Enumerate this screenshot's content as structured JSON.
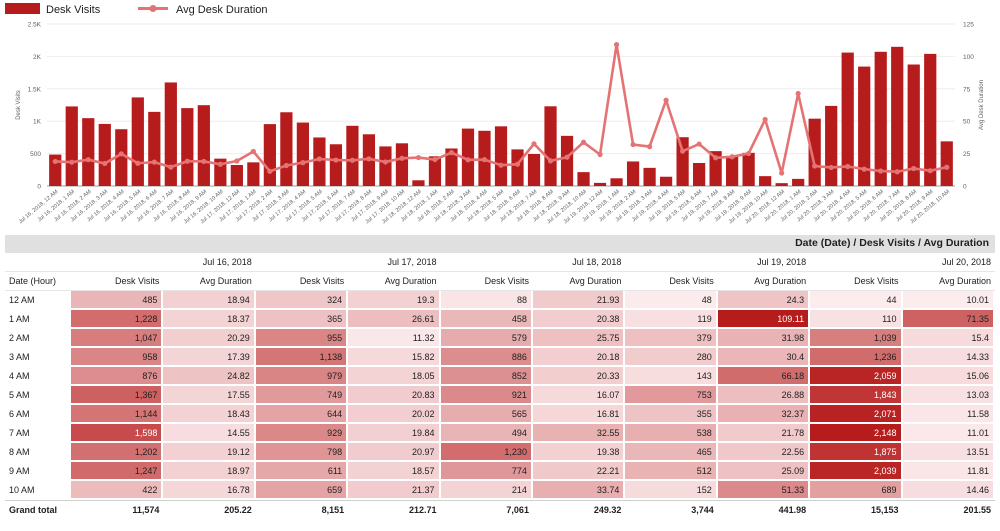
{
  "chart_data": {
    "type": "bar+line",
    "legend": {
      "position": "top-left",
      "bar_label": "Desk Visits",
      "line_label": "Avg Desk Duration"
    },
    "ylabel_left": "Desk Visits",
    "ylabel_right": "Avg Desk Duration",
    "ylim_left": [
      0,
      2500
    ],
    "ylim_right": [
      0,
      125
    ],
    "yticks_left": [
      "0",
      "500",
      "1K",
      "1.5K",
      "2K",
      "2.5K"
    ],
    "yticks_right": [
      "0",
      "25",
      "50",
      "75",
      "100",
      "125"
    ],
    "bar_color": "#b71c1c",
    "line_color": "#e57373",
    "categories": [
      "Jul 16, 2018, 12 AM",
      "Jul 16, 2018, 1 AM",
      "Jul 16, 2018, 2 AM",
      "Jul 16, 2018, 3 AM",
      "Jul 16, 2018, 4 AM",
      "Jul 16, 2018, 5 AM",
      "Jul 16, 2018, 6 AM",
      "Jul 16, 2018, 7 AM",
      "Jul 16, 2018, 8 AM",
      "Jul 16, 2018, 9 AM",
      "Jul 16, 2018, 10 AM",
      "Jul 17, 2018, 12 AM",
      "Jul 17, 2018, 1 AM",
      "Jul 17, 2018, 2 AM",
      "Jul 17, 2018, 3 AM",
      "Jul 17, 2018, 4 AM",
      "Jul 17, 2018, 5 AM",
      "Jul 17, 2018, 6 AM",
      "Jul 17, 2018, 7 AM",
      "Jul 17, 2018, 8 AM",
      "Jul 17, 2018, 9 AM",
      "Jul 17, 2018, 10 AM",
      "Jul 18, 2018, 12 AM",
      "Jul 18, 2018, 1 AM",
      "Jul 18, 2018, 2 AM",
      "Jul 18, 2018, 3 AM",
      "Jul 18, 2018, 4 AM",
      "Jul 18, 2018, 5 AM",
      "Jul 18, 2018, 6 AM",
      "Jul 18, 2018, 7 AM",
      "Jul 18, 2018, 8 AM",
      "Jul 18, 2018, 9 AM",
      "Jul 18, 2018, 10 AM",
      "Jul 19, 2018, 12 AM",
      "Jul 19, 2018, 1 AM",
      "Jul 19, 2018, 2 AM",
      "Jul 19, 2018, 3 AM",
      "Jul 19, 2018, 4 AM",
      "Jul 19, 2018, 5 AM",
      "Jul 19, 2018, 6 AM",
      "Jul 19, 2018, 7 AM",
      "Jul 19, 2018, 8 AM",
      "Jul 19, 2018, 9 AM",
      "Jul 19, 2018, 10 AM",
      "Jul 20, 2018, 12 AM",
      "Jul 20, 2018, 1 AM",
      "Jul 20, 2018, 2 AM",
      "Jul 20, 2018, 3 AM",
      "Jul 20, 2018, 4 AM",
      "Jul 20, 2018, 5 AM",
      "Jul 20, 2018, 6 AM",
      "Jul 20, 2018, 7 AM",
      "Jul 20, 2018, 8 AM",
      "Jul 20, 2018, 9 AM",
      "Jul 20, 2018, 10 AM"
    ],
    "series": [
      {
        "name": "Desk Visits",
        "type": "bar",
        "axis": "left",
        "values": [
          485,
          1228,
          1047,
          958,
          876,
          1367,
          1144,
          1598,
          1202,
          1247,
          422,
          324,
          365,
          955,
          1138,
          979,
          749,
          644,
          929,
          798,
          611,
          659,
          88,
          458,
          579,
          886,
          852,
          921,
          565,
          494,
          1230,
          774,
          214,
          48,
          119,
          379,
          280,
          143,
          753,
          355,
          538,
          465,
          512,
          152,
          44,
          110,
          1039,
          1236,
          2059,
          1843,
          2071,
          2148,
          1875,
          2039,
          689
        ]
      },
      {
        "name": "Avg Desk Duration",
        "type": "line",
        "axis": "right",
        "values": [
          18.94,
          18.37,
          20.29,
          17.39,
          24.82,
          17.55,
          18.43,
          14.55,
          19.12,
          18.97,
          16.78,
          19.3,
          26.61,
          11.32,
          15.82,
          18.05,
          20.83,
          20.02,
          19.84,
          20.97,
          18.57,
          21.37,
          21.93,
          20.38,
          25.75,
          20.18,
          20.33,
          16.07,
          16.81,
          32.55,
          19.38,
          22.21,
          33.74,
          24.3,
          109.11,
          31.98,
          30.4,
          66.18,
          26.88,
          32.37,
          21.78,
          22.56,
          25.09,
          51.33,
          10.01,
          71.35,
          15.4,
          14.33,
          15.06,
          13.03,
          11.58,
          11.01,
          13.51,
          11.81,
          14.46
        ]
      }
    ]
  },
  "table": {
    "title": "Date (Date) / Desk Visits / Avg Duration",
    "row_header": "Date (Hour)",
    "dates": [
      "Jul 16, 2018",
      "Jul 17, 2018",
      "Jul 18, 2018",
      "Jul 19, 2018",
      "Jul 20, 2018"
    ],
    "metric_headers": [
      "Desk Visits",
      "Avg Duration"
    ],
    "rows": [
      {
        "hour": "12 AM",
        "cells": [
          "485",
          "18.94",
          "324",
          "19.3",
          "88",
          "21.93",
          "48",
          "24.3",
          "44",
          "10.01"
        ]
      },
      {
        "hour": "1 AM",
        "cells": [
          "1,228",
          "18.37",
          "365",
          "26.61",
          "458",
          "20.38",
          "119",
          "109.11",
          "110",
          "71.35"
        ]
      },
      {
        "hour": "2 AM",
        "cells": [
          "1,047",
          "20.29",
          "955",
          "11.32",
          "579",
          "25.75",
          "379",
          "31.98",
          "1,039",
          "15.4"
        ]
      },
      {
        "hour": "3 AM",
        "cells": [
          "958",
          "17.39",
          "1,138",
          "15.82",
          "886",
          "20.18",
          "280",
          "30.4",
          "1,236",
          "14.33"
        ]
      },
      {
        "hour": "4 AM",
        "cells": [
          "876",
          "24.82",
          "979",
          "18.05",
          "852",
          "20.33",
          "143",
          "66.18",
          "2,059",
          "15.06"
        ]
      },
      {
        "hour": "5 AM",
        "cells": [
          "1,367",
          "17.55",
          "749",
          "20.83",
          "921",
          "16.07",
          "753",
          "26.88",
          "1,843",
          "13.03"
        ]
      },
      {
        "hour": "6 AM",
        "cells": [
          "1,144",
          "18.43",
          "644",
          "20.02",
          "565",
          "16.81",
          "355",
          "32.37",
          "2,071",
          "11.58"
        ]
      },
      {
        "hour": "7 AM",
        "cells": [
          "1,598",
          "14.55",
          "929",
          "19.84",
          "494",
          "32.55",
          "538",
          "21.78",
          "2,148",
          "11.01"
        ]
      },
      {
        "hour": "8 AM",
        "cells": [
          "1,202",
          "19.12",
          "798",
          "20.97",
          "1,230",
          "19.38",
          "465",
          "22.56",
          "1,875",
          "13.51"
        ]
      },
      {
        "hour": "9 AM",
        "cells": [
          "1,247",
          "18.97",
          "611",
          "18.57",
          "774",
          "22.21",
          "512",
          "25.09",
          "2,039",
          "11.81"
        ]
      },
      {
        "hour": "10 AM",
        "cells": [
          "422",
          "16.78",
          "659",
          "21.37",
          "214",
          "33.74",
          "152",
          "51.33",
          "689",
          "14.46"
        ]
      }
    ],
    "total_label": "Grand total",
    "totals": [
      "11,574",
      "205.22",
      "8,151",
      "212.71",
      "7,061",
      "249.32",
      "3,744",
      "441.98",
      "15,153",
      "201.55"
    ]
  }
}
